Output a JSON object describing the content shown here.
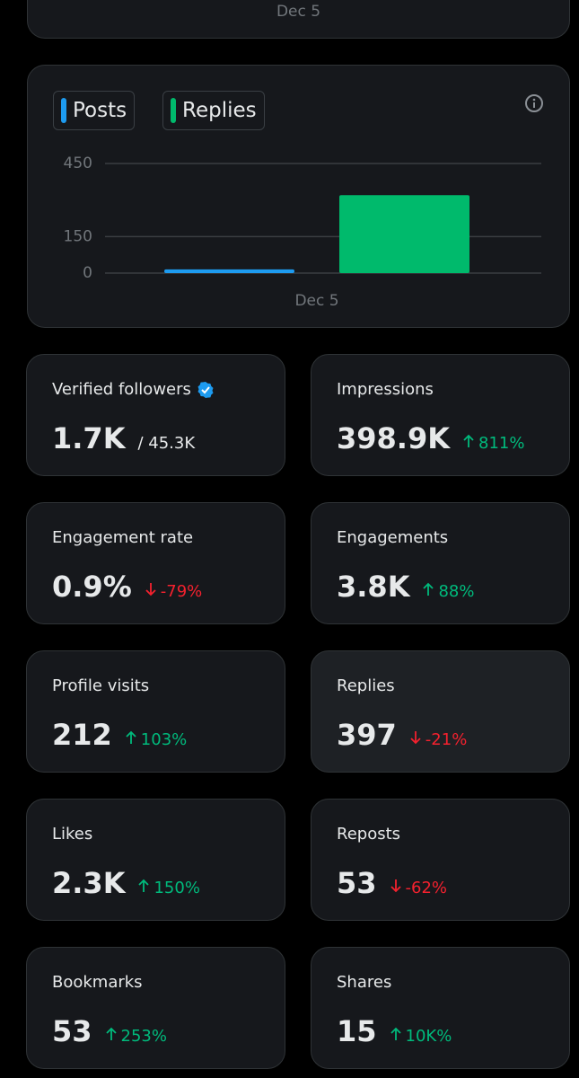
{
  "top_card": {
    "date_label": "Dec 5"
  },
  "chart_data": {
    "type": "bar",
    "categories": [
      "Dec 5"
    ],
    "series": [
      {
        "name": "Posts",
        "color": "#1d9bf0",
        "values": [
          15
        ]
      },
      {
        "name": "Replies",
        "color": "#00ba6c",
        "values": [
          320
        ]
      }
    ],
    "ylim": [
      0,
      450
    ],
    "yticks": [
      0,
      150,
      450
    ],
    "grid": true
  },
  "metrics": [
    {
      "label": "Verified followers",
      "value": "1.7K",
      "total": "/ 45.3K",
      "verified": true
    },
    {
      "label": "Impressions",
      "value": "398.9K",
      "change": "811%",
      "trend": "up"
    },
    {
      "label": "Engagement rate",
      "value": "0.9%",
      "change": "-79%",
      "trend": "down"
    },
    {
      "label": "Engagements",
      "value": "3.8K",
      "change": "88%",
      "trend": "up"
    },
    {
      "label": "Profile visits",
      "value": "212",
      "change": "103%",
      "trend": "up"
    },
    {
      "label": "Replies",
      "value": "397",
      "change": "-21%",
      "trend": "down"
    },
    {
      "label": "Likes",
      "value": "2.3K",
      "change": "150%",
      "trend": "up"
    },
    {
      "label": "Reposts",
      "value": "53",
      "change": "-62%",
      "trend": "down"
    },
    {
      "label": "Bookmarks",
      "value": "53",
      "change": "253%",
      "trend": "up"
    },
    {
      "label": "Shares",
      "value": "15",
      "change": "10K%",
      "trend": "up"
    }
  ]
}
